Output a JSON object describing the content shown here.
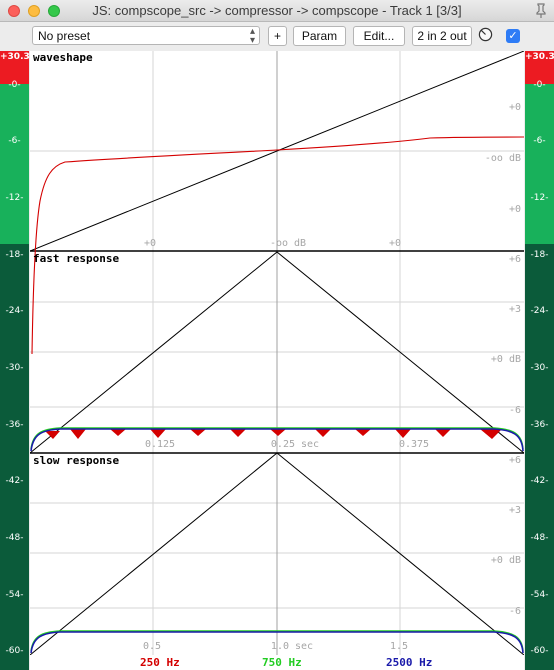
{
  "window": {
    "title": "JS: compscope_src -> compressor -> compscope - Track 1 [3/3]"
  },
  "toolbar": {
    "preset": "No preset",
    "plus_label": "+",
    "param_label": "Param",
    "edit_label": "Edit...",
    "io_label": "2 in 2 out",
    "bypass_checked": true
  },
  "meter": {
    "top_label": "+30.3",
    "labels": [
      "-0-",
      "-6-",
      "-12-",
      "-18-",
      "-24-",
      "-30-",
      "-36-",
      "-42-",
      "-48-",
      "-54-",
      "-60-"
    ],
    "colors": {
      "peak": "#ec1b22",
      "high": "#18b15b",
      "low": "#0b5b3a"
    }
  },
  "sections": {
    "waveshape": {
      "title": "waveshape",
      "labels": {
        "r1": "+0",
        "r2": "-oo dB",
        "r3": "+0",
        "b1": "+0",
        "b2": "-oo dB",
        "b3": "+0"
      }
    },
    "fast": {
      "title": "fast response",
      "labels": {
        "r1": "+6",
        "r2": "+3",
        "r3": "+0 dB",
        "r4": "-6"
      },
      "ticks": [
        "0.125",
        "0.25 sec",
        "0.375"
      ]
    },
    "slow": {
      "title": "slow response",
      "labels": {
        "r1": "+6",
        "r2": "+3",
        "r3": "+0 dB",
        "r4": "-6"
      },
      "ticks": [
        "0.5",
        "1.0 sec",
        "1.5"
      ]
    }
  },
  "legend": {
    "items": [
      {
        "label": "250 Hz",
        "color": "#d40000"
      },
      {
        "label": "750 Hz",
        "color": "#22cc22"
      },
      {
        "label": "2500 Hz",
        "color": "#1a1aaa"
      }
    ]
  }
}
